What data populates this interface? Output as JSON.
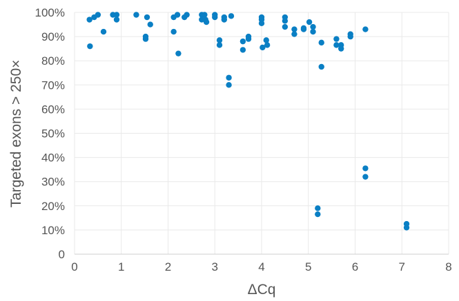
{
  "chart_data": {
    "type": "scatter",
    "xlabel": "ΔCq",
    "ylabel": "Targeted exons > 250×",
    "xlim": [
      0,
      8
    ],
    "ylim": [
      0,
      100
    ],
    "x_ticks": [
      "0",
      "1",
      "2",
      "3",
      "4",
      "5",
      "6",
      "7",
      "8"
    ],
    "y_ticks": [
      "0",
      "10%",
      "20%",
      "30%",
      "40%",
      "50%",
      "60%",
      "70%",
      "80%",
      "90%",
      "100%"
    ],
    "grid": true,
    "color": "#0a7fc4",
    "points": [
      {
        "x": 0.32,
        "y": 97
      },
      {
        "x": 0.33,
        "y": 86
      },
      {
        "x": 0.42,
        "y": 98
      },
      {
        "x": 0.5,
        "y": 99
      },
      {
        "x": 0.62,
        "y": 92
      },
      {
        "x": 0.82,
        "y": 99
      },
      {
        "x": 0.9,
        "y": 99
      },
      {
        "x": 0.9,
        "y": 97
      },
      {
        "x": 1.32,
        "y": 99
      },
      {
        "x": 1.52,
        "y": 90
      },
      {
        "x": 1.52,
        "y": 89
      },
      {
        "x": 1.55,
        "y": 98
      },
      {
        "x": 1.62,
        "y": 95
      },
      {
        "x": 2.12,
        "y": 98
      },
      {
        "x": 2.12,
        "y": 92
      },
      {
        "x": 2.2,
        "y": 99
      },
      {
        "x": 2.22,
        "y": 83
      },
      {
        "x": 2.35,
        "y": 98
      },
      {
        "x": 2.4,
        "y": 99
      },
      {
        "x": 2.72,
        "y": 99
      },
      {
        "x": 2.72,
        "y": 97
      },
      {
        "x": 2.78,
        "y": 99
      },
      {
        "x": 2.8,
        "y": 97
      },
      {
        "x": 2.82,
        "y": 96
      },
      {
        "x": 3.0,
        "y": 99
      },
      {
        "x": 3.0,
        "y": 98
      },
      {
        "x": 3.1,
        "y": 88.5
      },
      {
        "x": 3.1,
        "y": 86.5
      },
      {
        "x": 3.2,
        "y": 98
      },
      {
        "x": 3.2,
        "y": 97
      },
      {
        "x": 3.3,
        "y": 73
      },
      {
        "x": 3.3,
        "y": 70
      },
      {
        "x": 3.35,
        "y": 98.5
      },
      {
        "x": 3.6,
        "y": 88
      },
      {
        "x": 3.6,
        "y": 84.5
      },
      {
        "x": 3.72,
        "y": 90
      },
      {
        "x": 3.72,
        "y": 89
      },
      {
        "x": 4.0,
        "y": 98
      },
      {
        "x": 4.0,
        "y": 97
      },
      {
        "x": 4.0,
        "y": 95.5
      },
      {
        "x": 4.02,
        "y": 85.5
      },
      {
        "x": 4.1,
        "y": 88.5
      },
      {
        "x": 4.12,
        "y": 86.5
      },
      {
        "x": 4.5,
        "y": 98
      },
      {
        "x": 4.5,
        "y": 96.5
      },
      {
        "x": 4.5,
        "y": 94
      },
      {
        "x": 4.7,
        "y": 93
      },
      {
        "x": 4.7,
        "y": 91
      },
      {
        "x": 4.9,
        "y": 93.5
      },
      {
        "x": 4.9,
        "y": 93
      },
      {
        "x": 5.02,
        "y": 96
      },
      {
        "x": 5.1,
        "y": 94
      },
      {
        "x": 5.1,
        "y": 92
      },
      {
        "x": 5.2,
        "y": 19
      },
      {
        "x": 5.2,
        "y": 16.5
      },
      {
        "x": 5.28,
        "y": 87.5
      },
      {
        "x": 5.28,
        "y": 77.5
      },
      {
        "x": 5.6,
        "y": 89
      },
      {
        "x": 5.6,
        "y": 86.5
      },
      {
        "x": 5.7,
        "y": 86.5
      },
      {
        "x": 5.7,
        "y": 85
      },
      {
        "x": 5.9,
        "y": 91
      },
      {
        "x": 5.9,
        "y": 90
      },
      {
        "x": 6.22,
        "y": 93
      },
      {
        "x": 6.22,
        "y": 35.5
      },
      {
        "x": 6.22,
        "y": 32
      },
      {
        "x": 7.1,
        "y": 12.5
      },
      {
        "x": 7.1,
        "y": 11
      }
    ]
  }
}
